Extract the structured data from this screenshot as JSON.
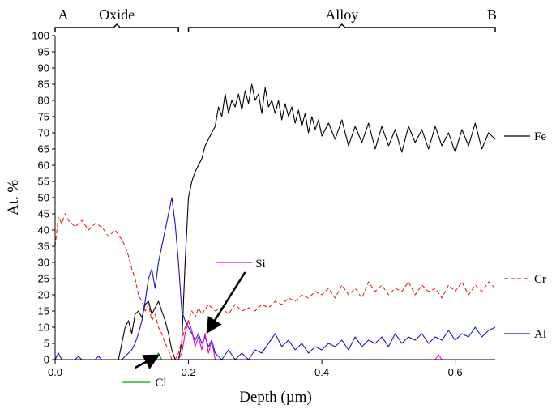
{
  "chart_data": {
    "type": "line",
    "title": "",
    "xlabel": "Depth (µm)",
    "ylabel": "At. %",
    "xlim": [
      0,
      0.66
    ],
    "ylim": [
      0,
      100
    ],
    "x_ticks": [
      {
        "value": 0,
        "label": "0.0"
      },
      {
        "value": 0.2,
        "label": "0.2"
      },
      {
        "value": 0.4,
        "label": "0.4"
      },
      {
        "value": 0.6,
        "label": "0.6"
      }
    ],
    "y_ticks": [
      0,
      5,
      10,
      15,
      20,
      25,
      30,
      35,
      40,
      45,
      50,
      55,
      60,
      65,
      70,
      75,
      80,
      85,
      90,
      95,
      100
    ],
    "grid": false,
    "regions": [
      {
        "label": "Oxide",
        "x_start": 0.0,
        "x_end": 0.185
      },
      {
        "label": "Alloy",
        "x_start": 0.2,
        "x_end": 0.66
      }
    ],
    "markers": [
      {
        "label": "A",
        "x": 0.0
      },
      {
        "label": "B",
        "x": 0.66
      }
    ],
    "series": [
      {
        "name": "Fe",
        "color": "#000000",
        "dash": "solid",
        "points": [
          [
            0.0,
            0
          ],
          [
            0.095,
            0
          ],
          [
            0.1,
            5
          ],
          [
            0.105,
            10
          ],
          [
            0.11,
            12
          ],
          [
            0.115,
            8
          ],
          [
            0.12,
            14
          ],
          [
            0.125,
            15
          ],
          [
            0.13,
            13
          ],
          [
            0.135,
            17
          ],
          [
            0.14,
            18
          ],
          [
            0.145,
            14
          ],
          [
            0.15,
            16
          ],
          [
            0.155,
            18
          ],
          [
            0.16,
            15
          ],
          [
            0.165,
            12
          ],
          [
            0.17,
            8
          ],
          [
            0.175,
            3
          ],
          [
            0.18,
            0
          ],
          [
            0.185,
            0
          ],
          [
            0.19,
            5
          ],
          [
            0.195,
            30
          ],
          [
            0.2,
            50
          ],
          [
            0.205,
            55
          ],
          [
            0.21,
            58
          ],
          [
            0.215,
            60
          ],
          [
            0.22,
            62
          ],
          [
            0.225,
            66
          ],
          [
            0.23,
            68
          ],
          [
            0.235,
            70
          ],
          [
            0.24,
            72
          ],
          [
            0.245,
            78
          ],
          [
            0.25,
            75
          ],
          [
            0.255,
            82
          ],
          [
            0.26,
            76
          ],
          [
            0.265,
            80
          ],
          [
            0.27,
            78
          ],
          [
            0.275,
            82
          ],
          [
            0.28,
            77
          ],
          [
            0.285,
            83
          ],
          [
            0.29,
            79
          ],
          [
            0.295,
            85
          ],
          [
            0.3,
            80
          ],
          [
            0.305,
            82
          ],
          [
            0.31,
            76
          ],
          [
            0.315,
            84
          ],
          [
            0.32,
            78
          ],
          [
            0.325,
            80
          ],
          [
            0.33,
            76
          ],
          [
            0.335,
            80
          ],
          [
            0.34,
            74
          ],
          [
            0.345,
            79
          ],
          [
            0.35,
            75
          ],
          [
            0.355,
            78
          ],
          [
            0.36,
            73
          ],
          [
            0.365,
            77
          ],
          [
            0.37,
            72
          ],
          [
            0.375,
            76
          ],
          [
            0.38,
            70
          ],
          [
            0.385,
            75
          ],
          [
            0.39,
            71
          ],
          [
            0.395,
            74
          ],
          [
            0.4,
            69
          ],
          [
            0.41,
            73
          ],
          [
            0.42,
            68
          ],
          [
            0.43,
            74
          ],
          [
            0.44,
            66
          ],
          [
            0.45,
            72
          ],
          [
            0.46,
            67
          ],
          [
            0.47,
            73
          ],
          [
            0.48,
            65
          ],
          [
            0.49,
            72
          ],
          [
            0.5,
            66
          ],
          [
            0.51,
            71
          ],
          [
            0.52,
            64
          ],
          [
            0.53,
            72
          ],
          [
            0.54,
            67
          ],
          [
            0.55,
            71
          ],
          [
            0.56,
            65
          ],
          [
            0.57,
            72
          ],
          [
            0.58,
            66
          ],
          [
            0.59,
            70
          ],
          [
            0.6,
            64
          ],
          [
            0.61,
            71
          ],
          [
            0.62,
            66
          ],
          [
            0.63,
            73
          ],
          [
            0.64,
            65
          ],
          [
            0.65,
            70
          ],
          [
            0.66,
            68
          ]
        ]
      },
      {
        "name": "Cr",
        "color": "#e8201e",
        "dash": "dashed",
        "points": [
          [
            0.0,
            35
          ],
          [
            0.005,
            44
          ],
          [
            0.01,
            42
          ],
          [
            0.015,
            45
          ],
          [
            0.02,
            43
          ],
          [
            0.03,
            41
          ],
          [
            0.04,
            43
          ],
          [
            0.05,
            40
          ],
          [
            0.06,
            42
          ],
          [
            0.07,
            41
          ],
          [
            0.08,
            38
          ],
          [
            0.09,
            40
          ],
          [
            0.1,
            37
          ],
          [
            0.105,
            35
          ],
          [
            0.11,
            32
          ],
          [
            0.115,
            28
          ],
          [
            0.12,
            25
          ],
          [
            0.125,
            20
          ],
          [
            0.13,
            18
          ],
          [
            0.135,
            15
          ],
          [
            0.14,
            17
          ],
          [
            0.145,
            12
          ],
          [
            0.15,
            14
          ],
          [
            0.155,
            10
          ],
          [
            0.16,
            8
          ],
          [
            0.165,
            5
          ],
          [
            0.17,
            3
          ],
          [
            0.175,
            0
          ],
          [
            0.18,
            0
          ],
          [
            0.185,
            2
          ],
          [
            0.19,
            6
          ],
          [
            0.195,
            10
          ],
          [
            0.2,
            12
          ],
          [
            0.205,
            15
          ],
          [
            0.21,
            13
          ],
          [
            0.215,
            16
          ],
          [
            0.22,
            14
          ],
          [
            0.23,
            17
          ],
          [
            0.24,
            15
          ],
          [
            0.25,
            16
          ],
          [
            0.26,
            14
          ],
          [
            0.27,
            17
          ],
          [
            0.28,
            15
          ],
          [
            0.29,
            16
          ],
          [
            0.3,
            15
          ],
          [
            0.31,
            17
          ],
          [
            0.32,
            16
          ],
          [
            0.33,
            18
          ],
          [
            0.34,
            17
          ],
          [
            0.35,
            19
          ],
          [
            0.36,
            18
          ],
          [
            0.37,
            20
          ],
          [
            0.38,
            19
          ],
          [
            0.39,
            21
          ],
          [
            0.4,
            20
          ],
          [
            0.41,
            22
          ],
          [
            0.42,
            19
          ],
          [
            0.43,
            23
          ],
          [
            0.44,
            20
          ],
          [
            0.45,
            22
          ],
          [
            0.46,
            19
          ],
          [
            0.47,
            24
          ],
          [
            0.48,
            21
          ],
          [
            0.49,
            23
          ],
          [
            0.5,
            20
          ],
          [
            0.51,
            22
          ],
          [
            0.52,
            21
          ],
          [
            0.53,
            24
          ],
          [
            0.54,
            20
          ],
          [
            0.55,
            23
          ],
          [
            0.56,
            21
          ],
          [
            0.57,
            22
          ],
          [
            0.58,
            19
          ],
          [
            0.59,
            23
          ],
          [
            0.6,
            21
          ],
          [
            0.61,
            24
          ],
          [
            0.62,
            20
          ],
          [
            0.63,
            23
          ],
          [
            0.64,
            21
          ],
          [
            0.65,
            24
          ],
          [
            0.66,
            22
          ]
        ]
      },
      {
        "name": "Al",
        "color": "#1414d2",
        "dash": "solid",
        "points": [
          [
            0.0,
            0
          ],
          [
            0.005,
            2
          ],
          [
            0.01,
            0
          ],
          [
            0.03,
            0
          ],
          [
            0.035,
            1
          ],
          [
            0.04,
            0
          ],
          [
            0.06,
            0
          ],
          [
            0.065,
            1
          ],
          [
            0.07,
            0
          ],
          [
            0.1,
            0
          ],
          [
            0.11,
            2
          ],
          [
            0.115,
            3
          ],
          [
            0.12,
            5
          ],
          [
            0.125,
            8
          ],
          [
            0.13,
            12
          ],
          [
            0.135,
            18
          ],
          [
            0.14,
            25
          ],
          [
            0.145,
            28
          ],
          [
            0.15,
            22
          ],
          [
            0.155,
            30
          ],
          [
            0.16,
            35
          ],
          [
            0.165,
            40
          ],
          [
            0.17,
            45
          ],
          [
            0.175,
            50
          ],
          [
            0.18,
            42
          ],
          [
            0.185,
            30
          ],
          [
            0.19,
            15
          ],
          [
            0.195,
            12
          ],
          [
            0.2,
            10
          ],
          [
            0.205,
            8
          ],
          [
            0.21,
            6
          ],
          [
            0.215,
            8
          ],
          [
            0.22,
            5
          ],
          [
            0.225,
            7
          ],
          [
            0.23,
            4
          ],
          [
            0.235,
            6
          ],
          [
            0.24,
            2
          ],
          [
            0.25,
            0
          ],
          [
            0.26,
            3
          ],
          [
            0.27,
            0
          ],
          [
            0.28,
            2
          ],
          [
            0.29,
            0
          ],
          [
            0.3,
            3
          ],
          [
            0.31,
            2
          ],
          [
            0.32,
            5
          ],
          [
            0.33,
            8
          ],
          [
            0.34,
            4
          ],
          [
            0.35,
            6
          ],
          [
            0.36,
            3
          ],
          [
            0.37,
            5
          ],
          [
            0.38,
            2
          ],
          [
            0.39,
            4
          ],
          [
            0.4,
            3
          ],
          [
            0.41,
            5
          ],
          [
            0.42,
            4
          ],
          [
            0.43,
            6
          ],
          [
            0.44,
            3
          ],
          [
            0.45,
            7
          ],
          [
            0.46,
            4
          ],
          [
            0.47,
            6
          ],
          [
            0.48,
            5
          ],
          [
            0.49,
            7
          ],
          [
            0.5,
            4
          ],
          [
            0.51,
            8
          ],
          [
            0.52,
            5
          ],
          [
            0.53,
            7
          ],
          [
            0.54,
            6
          ],
          [
            0.55,
            8
          ],
          [
            0.56,
            5
          ],
          [
            0.57,
            7
          ],
          [
            0.58,
            6
          ],
          [
            0.59,
            9
          ],
          [
            0.6,
            6
          ],
          [
            0.61,
            8
          ],
          [
            0.62,
            7
          ],
          [
            0.63,
            10
          ],
          [
            0.64,
            7
          ],
          [
            0.65,
            9
          ],
          [
            0.66,
            10
          ]
        ]
      },
      {
        "name": "Si",
        "color": "#e000e0",
        "dash": "solid",
        "points": [
          [
            0.0,
            0
          ],
          [
            0.185,
            0
          ],
          [
            0.19,
            2
          ],
          [
            0.195,
            8
          ],
          [
            0.2,
            12
          ],
          [
            0.205,
            9
          ],
          [
            0.21,
            4
          ],
          [
            0.215,
            7
          ],
          [
            0.22,
            3
          ],
          [
            0.225,
            8
          ],
          [
            0.23,
            2
          ],
          [
            0.235,
            6
          ],
          [
            0.24,
            0
          ],
          [
            0.57,
            0
          ],
          [
            0.575,
            1.5
          ],
          [
            0.58,
            0
          ],
          [
            0.66,
            0
          ]
        ]
      },
      {
        "name": "Cl",
        "color": "#00a000",
        "dash": "solid",
        "points": [
          [
            0.0,
            0
          ],
          [
            0.15,
            0
          ],
          [
            0.155,
            2
          ],
          [
            0.16,
            0
          ],
          [
            0.66,
            0
          ]
        ]
      }
    ],
    "legend": [
      {
        "name": "Fe",
        "placement": "right",
        "y_value": 69
      },
      {
        "name": "Cr",
        "placement": "right",
        "y_value": 25
      },
      {
        "name": "Al",
        "placement": "right",
        "y_value": 8
      },
      {
        "name": "Si",
        "placement": "inset",
        "x_value": 0.23,
        "y_value": 30
      },
      {
        "name": "Cl",
        "placement": "below",
        "x_value": 0.06,
        "y_value": -7
      }
    ],
    "annotations": [
      {
        "text": "arrow-to-si",
        "from": [
          0.285,
          27
        ],
        "to": [
          0.23,
          9
        ]
      },
      {
        "text": "arrow-to-cl",
        "from": [
          0.12,
          -2.5
        ],
        "to": [
          0.152,
          1
        ]
      }
    ]
  }
}
